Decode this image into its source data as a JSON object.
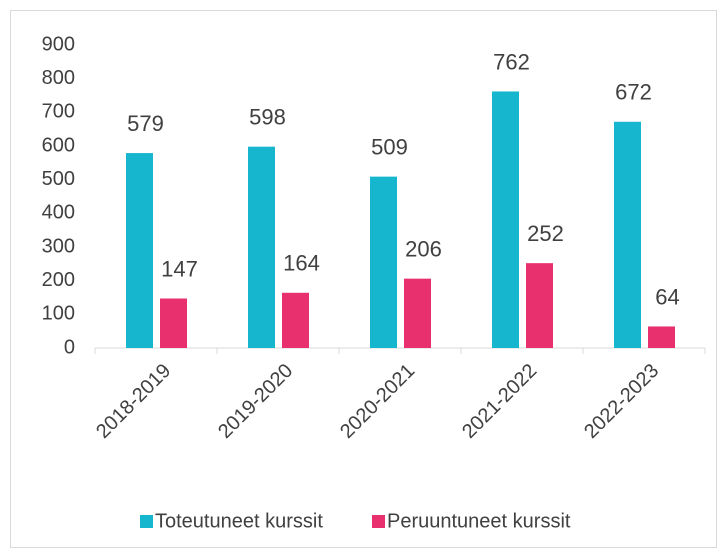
{
  "chart_data": {
    "type": "bar",
    "categories": [
      "2018-2019",
      "2019-2020",
      "2020-2021",
      "2021-2022",
      "2022-2023"
    ],
    "series": [
      {
        "name": "Toteutuneet kurssit",
        "color": "#17b6cf",
        "values": [
          579,
          598,
          509,
          762,
          672
        ]
      },
      {
        "name": "Peruuntuneet kurssit",
        "color": "#e8306f",
        "values": [
          147,
          164,
          206,
          252,
          64
        ]
      }
    ],
    "ylim": [
      0,
      900
    ],
    "yticks": [
      0,
      100,
      200,
      300,
      400,
      500,
      600,
      700,
      800,
      900
    ],
    "grid": false,
    "legend": "bottom"
  }
}
